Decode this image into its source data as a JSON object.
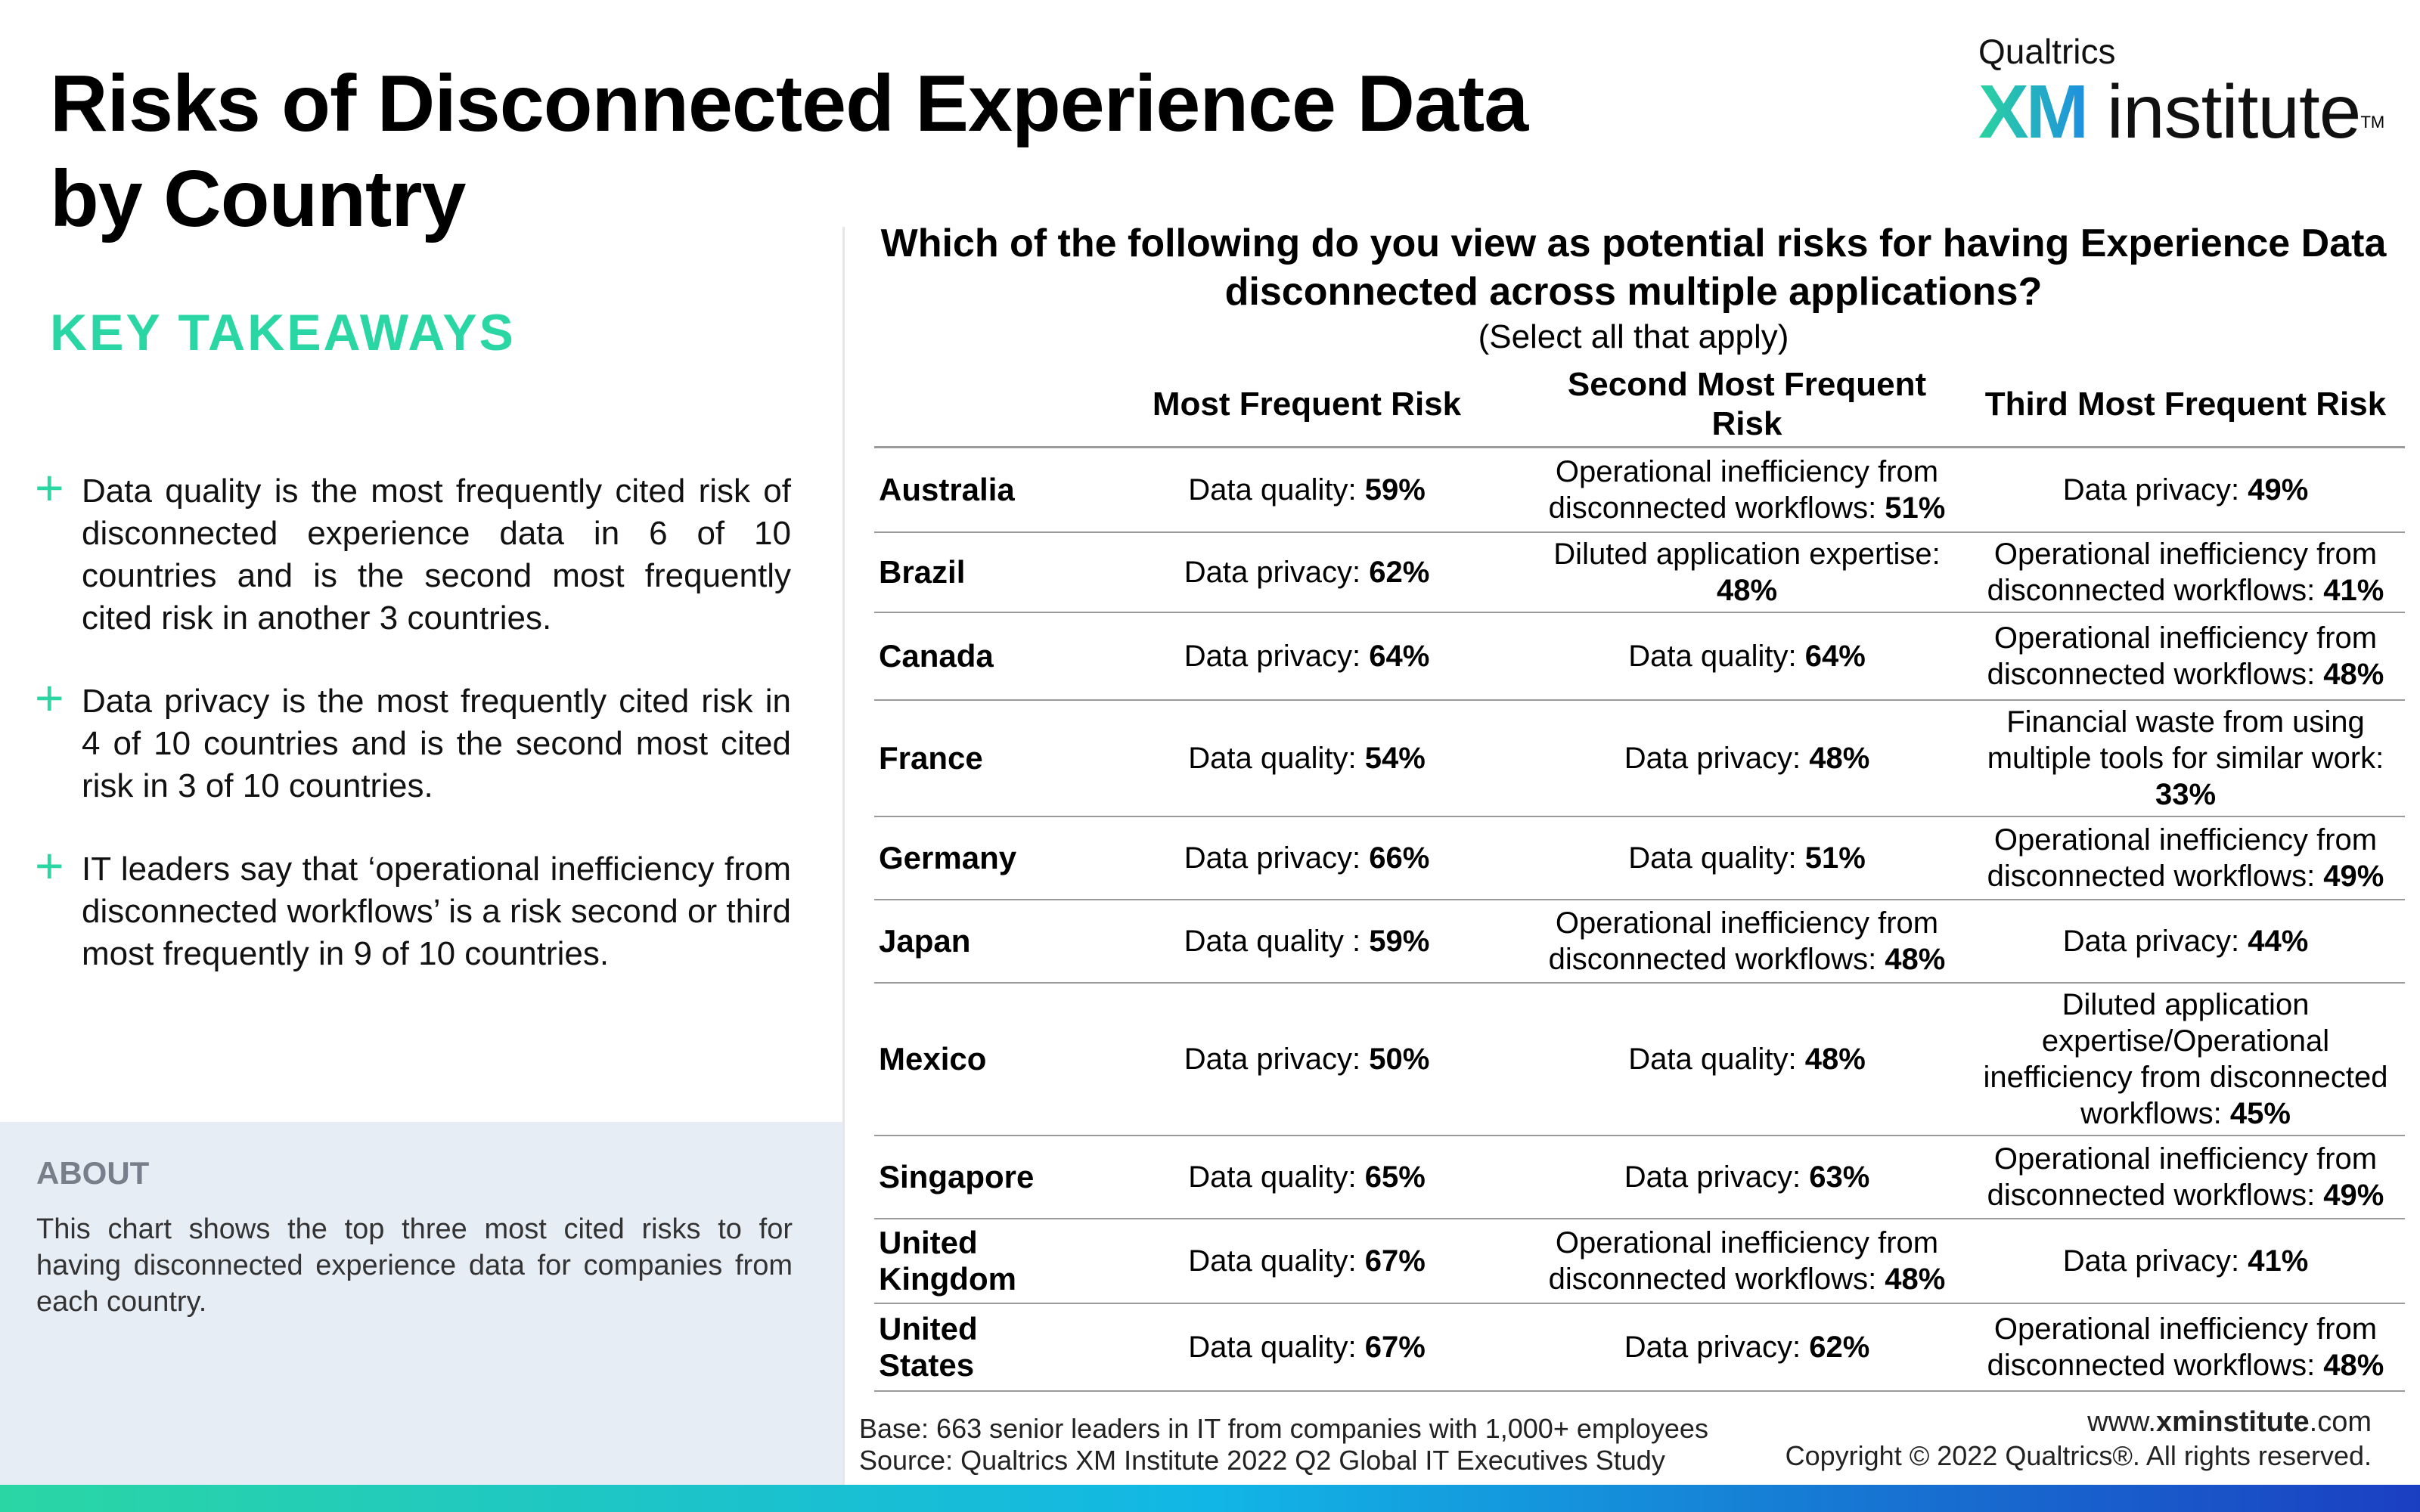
{
  "title": "Risks of Disconnected Experience Data by Country",
  "brand": {
    "top": "Qualtrics",
    "xm": "XM",
    "institute": "institute",
    "tm": "TM"
  },
  "key_takeaways": {
    "heading": "KEY TAKEAWAYS",
    "items": [
      "Data quality is the most frequently cited risk of disconnected experience data in 6 of 10 countries and is the second most frequently cited risk in another 3 countries.",
      "Data privacy is the most frequently cited risk in 4 of 10 countries and is the second most cited risk in 3 of 10 countries.",
      "IT leaders say that ‘operational inefficiency from disconnected workflows’ is a risk second or third most frequently in 9 of 10 countries."
    ]
  },
  "about": {
    "heading": "ABOUT",
    "text": "This chart shows the top three most cited risks to for having disconnected experience data for companies from each country."
  },
  "question": "Which of the following do you view as potential risks for having Experience Data disconnected across multiple applications?",
  "subquestion": "(Select all that apply)",
  "table": {
    "headers": [
      "Most Frequent Risk",
      "Second Most Frequent Risk",
      "Third Most Frequent Risk"
    ],
    "rows": [
      {
        "country": "Australia",
        "c1": {
          "label": "Data quality: ",
          "pct": "59%"
        },
        "c2": {
          "label": "Operational inefficiency from disconnected workflows: ",
          "pct": "51%"
        },
        "c3": {
          "label": "Data privacy: ",
          "pct": "49%"
        }
      },
      {
        "country": "Brazil",
        "c1": {
          "label": "Data privacy: ",
          "pct": "62%"
        },
        "c2": {
          "label": "Diluted application expertise: ",
          "pct": "48%"
        },
        "c3": {
          "label": "Operational inefficiency from disconnected workflows: ",
          "pct": "41%"
        }
      },
      {
        "country": "Canada",
        "c1": {
          "label": "Data privacy: ",
          "pct": "64%"
        },
        "c2": {
          "label": "Data quality: ",
          "pct": "64%"
        },
        "c3": {
          "label": "Operational inefficiency from disconnected workflows: ",
          "pct": "48%"
        }
      },
      {
        "country": "France",
        "c1": {
          "label": "Data quality: ",
          "pct": "54%"
        },
        "c2": {
          "label": "Data privacy: ",
          "pct": "48%"
        },
        "c3": {
          "label": "Financial waste from using multiple tools for similar work: ",
          "pct": "33%"
        }
      },
      {
        "country": "Germany",
        "c1": {
          "label": "Data privacy: ",
          "pct": "66%"
        },
        "c2": {
          "label": "Data quality: ",
          "pct": "51%"
        },
        "c3": {
          "label": "Operational inefficiency from disconnected workflows: ",
          "pct": "49%"
        }
      },
      {
        "country": "Japan",
        "c1": {
          "label": "Data quality : ",
          "pct": "59%"
        },
        "c2": {
          "label": "Operational inefficiency from disconnected workflows: ",
          "pct": "48%"
        },
        "c3": {
          "label": "Data privacy: ",
          "pct": "44%"
        }
      },
      {
        "country": "Mexico",
        "c1": {
          "label": "Data privacy: ",
          "pct": "50%"
        },
        "c2": {
          "label": "Data quality: ",
          "pct": "48%"
        },
        "c3": {
          "label": "Diluted application expertise/Operational inefficiency from disconnected workflows: ",
          "pct": "45%"
        }
      },
      {
        "country": "Singapore",
        "c1": {
          "label": "Data quality: ",
          "pct": "65%"
        },
        "c2": {
          "label": "Data privacy: ",
          "pct": "63%"
        },
        "c3": {
          "label": "Operational inefficiency from disconnected workflows: ",
          "pct": "49%"
        }
      },
      {
        "country": "United Kingdom",
        "c1": {
          "label": "Data quality: ",
          "pct": "67%"
        },
        "c2": {
          "label": "Operational inefficiency from disconnected workflows: ",
          "pct": "48%"
        },
        "c3": {
          "label": "Data privacy: ",
          "pct": "41%"
        }
      },
      {
        "country": "United States",
        "c1": {
          "label": "Data quality: ",
          "pct": "67%"
        },
        "c2": {
          "label": "Data privacy: ",
          "pct": "62%"
        },
        "c3": {
          "label": "Operational inefficiency from disconnected workflows: ",
          "pct": "48%"
        }
      }
    ]
  },
  "footer": {
    "base": "Base: 663 senior leaders in IT from companies with 1,000+ employees",
    "source": "Source: Qualtrics XM Institute 2022 Q2 Global IT Executives Study",
    "site_prefix": "www.",
    "site_bold": "xminstitute",
    "site_suffix": ".com",
    "copyright": "Copyright © 2022 Qualtrics®. All rights reserved."
  },
  "colors": {
    "accent": "#2ad6a4",
    "about_bg": "#e6edf4",
    "gradient_end": "#1b3fc2"
  }
}
